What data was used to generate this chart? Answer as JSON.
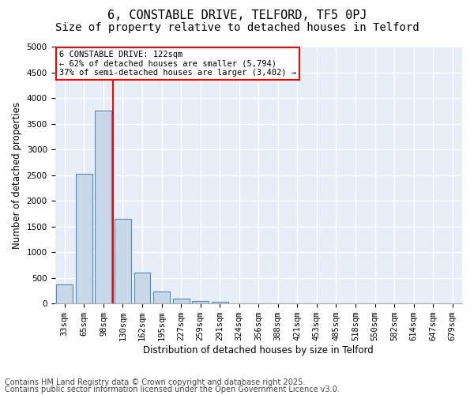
{
  "title1": "6, CONSTABLE DRIVE, TELFORD, TF5 0PJ",
  "title2": "Size of property relative to detached houses in Telford",
  "xlabel": "Distribution of detached houses by size in Telford",
  "ylabel": "Number of detached properties",
  "bins": [
    "33sqm",
    "65sqm",
    "98sqm",
    "130sqm",
    "162sqm",
    "195sqm",
    "227sqm",
    "259sqm",
    "291sqm",
    "324sqm",
    "356sqm",
    "388sqm",
    "421sqm",
    "453sqm",
    "485sqm",
    "518sqm",
    "550sqm",
    "582sqm",
    "614sqm",
    "647sqm",
    "679sqm"
  ],
  "values": [
    380,
    2530,
    3760,
    1650,
    610,
    230,
    100,
    55,
    30,
    5,
    2,
    1,
    0,
    0,
    0,
    0,
    0,
    0,
    0,
    0,
    0
  ],
  "bar_color": "#c8d8e8",
  "bar_edge_color": "#5588bb",
  "vline_color": "red",
  "vline_x": 2.5,
  "annotation_text": "6 CONSTABLE DRIVE: 122sqm\n← 62% of detached houses are smaller (5,794)\n37% of semi-detached houses are larger (3,402) →",
  "annotation_box_color": "white",
  "annotation_box_edge_color": "red",
  "ylim": [
    0,
    5000
  ],
  "yticks": [
    0,
    500,
    1000,
    1500,
    2000,
    2500,
    3000,
    3500,
    4000,
    4500,
    5000
  ],
  "background_color": "#e8eef8",
  "grid_color": "white",
  "footer1": "Contains HM Land Registry data © Crown copyright and database right 2025.",
  "footer2": "Contains public sector information licensed under the Open Government Licence v3.0.",
  "title_fontsize": 11,
  "subtitle_fontsize": 10,
  "label_fontsize": 8.5,
  "tick_fontsize": 7.5,
  "footer_fontsize": 7
}
